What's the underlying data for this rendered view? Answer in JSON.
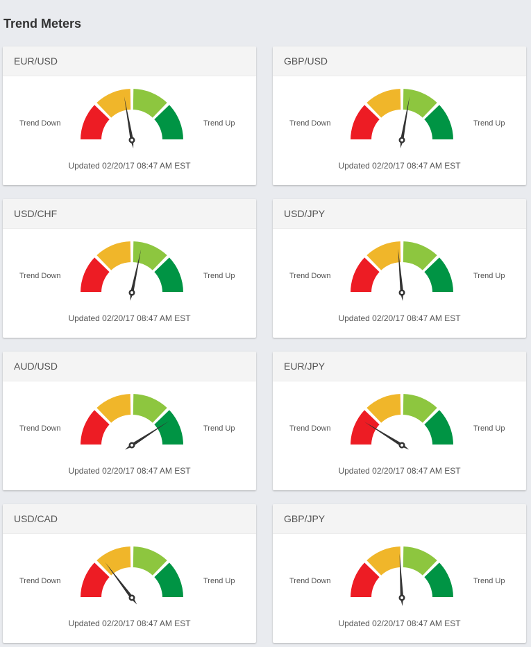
{
  "page": {
    "title": "Trend Meters"
  },
  "colors": {
    "segment_1": "#ed1c24",
    "segment_2": "#f0b62a",
    "segment_3": "#8dc63f",
    "segment_4": "#009444",
    "needle": "#333333"
  },
  "labels": {
    "trend_down": "Trend Down",
    "trend_up": "Trend Up"
  },
  "meters": [
    {
      "pair": "EUR/USD",
      "needle_angle_deg": -10,
      "updated": "Updated 02/20/17 08:47 AM EST"
    },
    {
      "pair": "GBP/USD",
      "needle_angle_deg": 10,
      "updated": "Updated 02/20/17 08:47 AM EST"
    },
    {
      "pair": "USD/CHF",
      "needle_angle_deg": 12,
      "updated": "Updated 02/20/17 08:47 AM EST"
    },
    {
      "pair": "USD/JPY",
      "needle_angle_deg": -5,
      "updated": "Updated 02/20/17 08:47 AM EST"
    },
    {
      "pair": "AUD/USD",
      "needle_angle_deg": 57,
      "updated": "Updated 02/20/17 08:47 AM EST"
    },
    {
      "pair": "EUR/JPY",
      "needle_angle_deg": -58,
      "updated": "Updated 02/20/17 08:47 AM EST"
    },
    {
      "pair": "USD/CAD",
      "needle_angle_deg": -37,
      "updated": "Updated 02/20/17 08:47 AM EST"
    },
    {
      "pair": "GBP/JPY",
      "needle_angle_deg": -3,
      "updated": "Updated 02/20/17 08:47 AM EST"
    }
  ]
}
